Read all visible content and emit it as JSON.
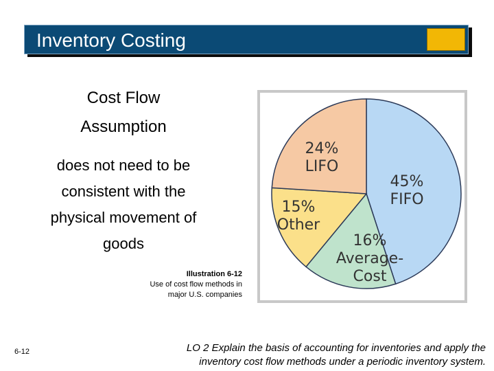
{
  "title": "Inventory Costing",
  "heading_line1": "Cost Flow",
  "heading_line2": "Assumption",
  "body_lines": [
    "does not need to be",
    "consistent with the",
    "physical movement of",
    "goods"
  ],
  "caption_bold": "Illustration 6-12",
  "caption_line1": "Use of cost flow methods in",
  "caption_line2": "major U.S. companies",
  "slide_number": "6-12",
  "lo_line1": "LO 2  Explain the basis of accounting for inventories and apply the",
  "lo_line2": "inventory cost flow methods under a periodic inventory system.",
  "colors": {
    "title_bar": "#0b4a75",
    "title_accent": "#f2b705",
    "fifo": "#b8d8f4",
    "lifo": "#f6c9a4",
    "other": "#fbe08a",
    "average": "#bfe3cc"
  },
  "chart_data": {
    "type": "pie",
    "slices": [
      {
        "label": "FIFO",
        "pct_text": "45%",
        "value": 45,
        "color": "#b8d8f4"
      },
      {
        "label": "Average-\nCost",
        "pct_text": "16%",
        "value": 16,
        "color": "#bfe3cc"
      },
      {
        "label": "Other",
        "pct_text": "15%",
        "value": 15,
        "color": "#fbe08a"
      },
      {
        "label": "LIFO",
        "pct_text": "24%",
        "value": 24,
        "color": "#f6c9a4"
      }
    ]
  }
}
